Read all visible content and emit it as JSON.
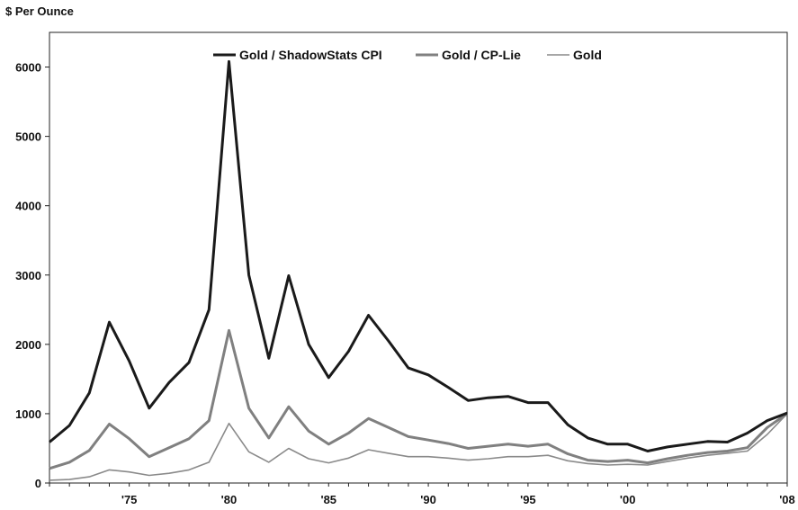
{
  "chart_data": {
    "type": "line",
    "title": "",
    "ylabel": "$ Per Ounce",
    "xlabel": "",
    "xlim": [
      1971,
      2008
    ],
    "ylim": [
      0,
      6500
    ],
    "yticks": [
      0,
      1000,
      2000,
      3000,
      4000,
      5000,
      6000
    ],
    "xticks": [
      {
        "value": 1975,
        "label": "'75"
      },
      {
        "value": 1980,
        "label": "'80"
      },
      {
        "value": 1985,
        "label": "'85"
      },
      {
        "value": 1990,
        "label": "'90"
      },
      {
        "value": 1995,
        "label": "'95"
      },
      {
        "value": 2000,
        "label": "'00"
      },
      {
        "value": 2008,
        "label": "'08"
      }
    ],
    "grid": false,
    "legend_position": "top-center",
    "x": [
      1971,
      1972,
      1973,
      1974,
      1975,
      1976,
      1977,
      1978,
      1979,
      1980,
      1981,
      1982,
      1983,
      1984,
      1985,
      1986,
      1987,
      1988,
      1989,
      1990,
      1991,
      1992,
      1993,
      1994,
      1995,
      1996,
      1997,
      1998,
      1999,
      2000,
      2001,
      2002,
      2003,
      2004,
      2005,
      2006,
      2007,
      2008
    ],
    "series": [
      {
        "name": "Gold / ShadowStats CPI",
        "color": "#1a1a1a",
        "width": 3,
        "values": [
          590,
          830,
          1300,
          2320,
          1760,
          1080,
          1450,
          1740,
          2500,
          6080,
          3000,
          1800,
          2990,
          2000,
          1520,
          1900,
          2420,
          2050,
          1660,
          1560,
          1380,
          1190,
          1230,
          1250,
          1160,
          1160,
          840,
          650,
          560,
          560,
          460,
          520,
          560,
          600,
          590,
          720,
          900,
          1010
        ]
      },
      {
        "name": "Gold / CP-Lie",
        "color": "#808080",
        "width": 3,
        "values": [
          210,
          300,
          470,
          850,
          640,
          380,
          510,
          640,
          900,
          2200,
          1080,
          650,
          1100,
          750,
          560,
          720,
          930,
          800,
          670,
          620,
          570,
          500,
          530,
          560,
          530,
          560,
          420,
          330,
          310,
          330,
          290,
          350,
          400,
          440,
          460,
          510,
          800,
          1000
        ]
      },
      {
        "name": "Gold",
        "color": "#8a8a8a",
        "width": 1.6,
        "values": [
          40,
          50,
          90,
          190,
          160,
          110,
          140,
          190,
          300,
          860,
          450,
          300,
          500,
          350,
          290,
          360,
          480,
          430,
          380,
          380,
          360,
          330,
          350,
          380,
          380,
          400,
          320,
          280,
          260,
          270,
          260,
          310,
          360,
          400,
          430,
          460,
          700,
          1000
        ]
      }
    ]
  }
}
